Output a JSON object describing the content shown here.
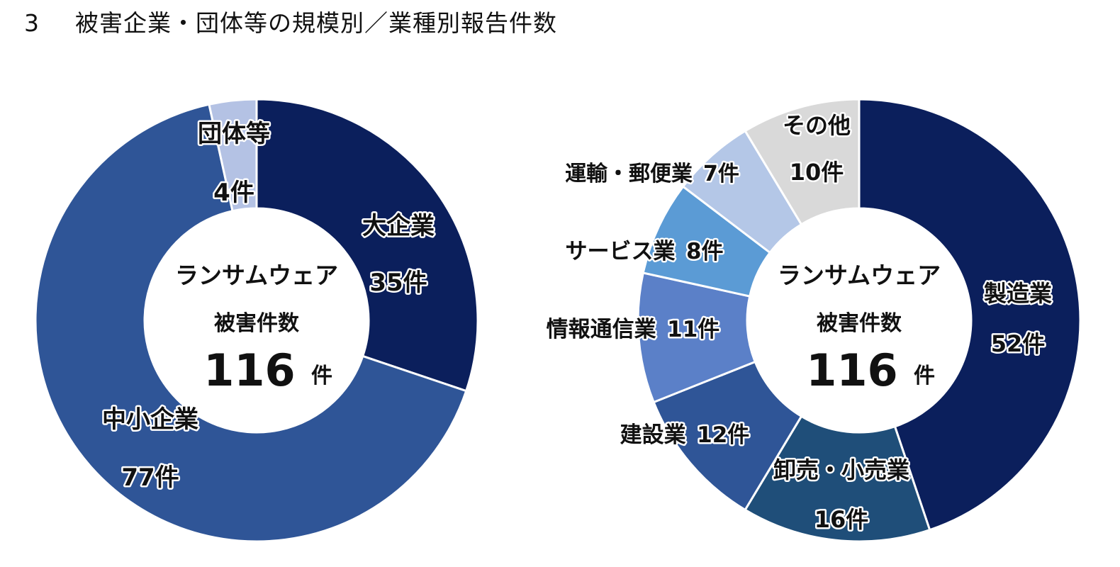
{
  "page": {
    "title_number": "3",
    "title_text": "被害企業・団体等の規模別／業種別報告件数"
  },
  "chart_data": [
    {
      "type": "pie",
      "variant": "donut",
      "categories": [
        "大企業",
        "中小企業",
        "団体等"
      ],
      "values": [
        35,
        77,
        4
      ],
      "value_labels": [
        "35件",
        "77件",
        "4件"
      ],
      "colors": [
        "#0b1f5c",
        "#2f5597",
        "#b4c2e4"
      ],
      "center": {
        "line1": "ランサムウェア",
        "line2": "被害件数",
        "total": "116",
        "unit": "件"
      }
    },
    {
      "type": "pie",
      "variant": "donut",
      "categories": [
        "製造業",
        "卸売・小売業",
        "建設業",
        "情報通信業",
        "サービス業",
        "運輸・郵便業",
        "その他"
      ],
      "values": [
        52,
        16,
        12,
        11,
        8,
        7,
        10
      ],
      "value_labels": [
        "52件",
        "16件",
        "12件",
        "11件",
        "8件",
        "7件",
        "10件"
      ],
      "colors": [
        "#0b1f5c",
        "#1f4e79",
        "#2f5597",
        "#5b80c8",
        "#5b9bd5",
        "#b4c7e7",
        "#d9d9d9"
      ],
      "center": {
        "line1": "ランサムウェア",
        "line2": "被害件数",
        "total": "116",
        "unit": "件"
      }
    }
  ]
}
